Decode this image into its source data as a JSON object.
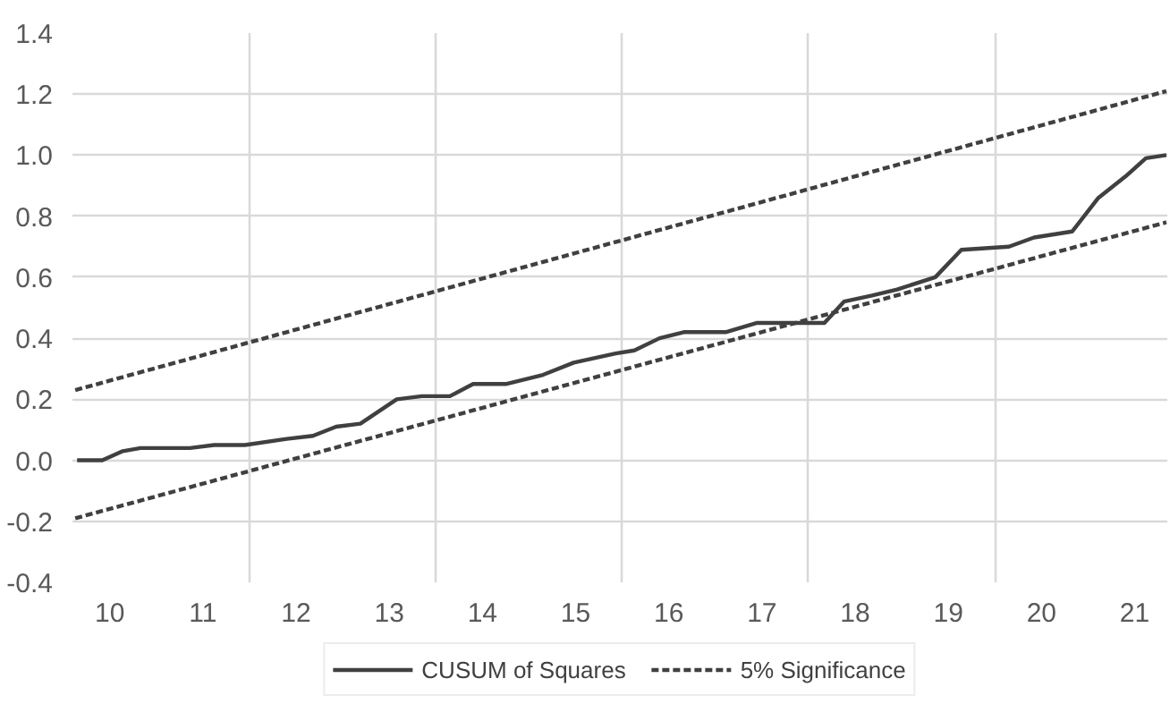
{
  "chart_data": {
    "type": "line",
    "xlim": [
      10.1,
      21.85
    ],
    "ylim": [
      -0.4,
      1.4
    ],
    "xticks": [
      {
        "value": 10.5,
        "label": "10"
      },
      {
        "value": 11.5,
        "label": "11"
      },
      {
        "value": 12,
        "label": null
      },
      {
        "value": 12.5,
        "label": "12"
      },
      {
        "value": 13.5,
        "label": "13"
      },
      {
        "value": 14,
        "label": null
      },
      {
        "value": 14.5,
        "label": "14"
      },
      {
        "value": 15.5,
        "label": "15"
      },
      {
        "value": 16,
        "label": null
      },
      {
        "value": 16.5,
        "label": "16"
      },
      {
        "value": 17.5,
        "label": "17"
      },
      {
        "value": 18,
        "label": null
      },
      {
        "value": 18.5,
        "label": "18"
      },
      {
        "value": 19.5,
        "label": "19"
      },
      {
        "value": 20,
        "label": null
      },
      {
        "value": 20.5,
        "label": "20"
      },
      {
        "value": 21.5,
        "label": "21"
      }
    ],
    "yticks": [
      {
        "value": -0.4,
        "label": "-0.4"
      },
      {
        "value": -0.2,
        "label": "-0.2"
      },
      {
        "value": 0,
        "label": "0.0"
      },
      {
        "value": 0.2,
        "label": "0.2"
      },
      {
        "value": 0.4,
        "label": "0.4"
      },
      {
        "value": 0.6,
        "label": "0.6"
      },
      {
        "value": 0.8,
        "label": "0.8"
      },
      {
        "value": 1.0,
        "label": "1.0"
      },
      {
        "value": 1.2,
        "label": "1.2"
      },
      {
        "value": 1.4,
        "label": "1.4"
      }
    ],
    "grid": true,
    "legend": "bottom",
    "series": [
      {
        "name": "CUSUM of Squares",
        "color": "#404040",
        "line_style": "solid",
        "x": [
          10.15,
          10.42,
          10.64,
          10.83,
          11.36,
          11.62,
          11.95,
          12.4,
          12.68,
          12.93,
          13.19,
          13.58,
          13.85,
          14.15,
          14.4,
          14.75,
          15.15,
          15.48,
          15.93,
          16.13,
          16.4,
          16.66,
          17.11,
          17.44,
          18.17,
          18.38,
          18.68,
          18.95,
          19.36,
          19.64,
          20.15,
          20.42,
          20.83,
          21.11,
          21.4,
          21.62,
          21.84
        ],
        "values": [
          0.0,
          0.0,
          0.03,
          0.04,
          0.04,
          0.05,
          0.05,
          0.07,
          0.08,
          0.11,
          0.12,
          0.2,
          0.21,
          0.21,
          0.25,
          0.25,
          0.28,
          0.32,
          0.35,
          0.36,
          0.4,
          0.42,
          0.42,
          0.45,
          0.45,
          0.52,
          0.54,
          0.56,
          0.6,
          0.69,
          0.7,
          0.73,
          0.75,
          0.86,
          0.93,
          0.99,
          1.0
        ]
      },
      {
        "name": "5% Significance",
        "color": "#404040",
        "line_style": "dashed",
        "x": [
          10.13,
          21.84
        ],
        "values": [
          0.23,
          1.21
        ]
      },
      {
        "color": "#404040",
        "line_style": "dashed",
        "x": [
          10.13,
          21.84
        ],
        "values": [
          -0.19,
          0.78
        ]
      }
    ]
  }
}
